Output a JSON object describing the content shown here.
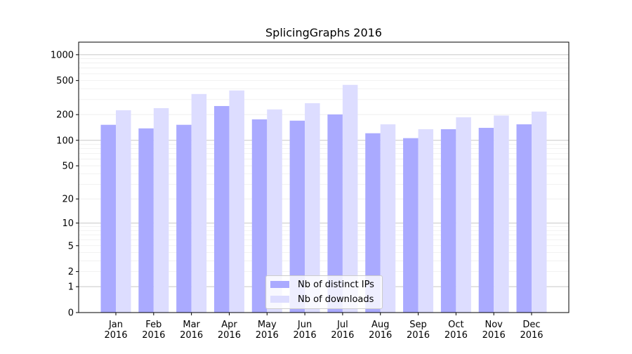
{
  "chart_data": {
    "type": "bar",
    "title": "SplicingGraphs 2016",
    "xlabel": "",
    "ylabel": "",
    "yscale": "log(1+y)",
    "ylim": [
      0,
      1400
    ],
    "yticks": [
      0,
      1,
      2,
      5,
      10,
      20,
      50,
      100,
      200,
      500,
      1000
    ],
    "grid": true,
    "legend_position": "bottom-center",
    "categories": [
      "Jan\n2016",
      "Feb\n2016",
      "Mar\n2016",
      "Apr\n2016",
      "May\n2016",
      "Jun\n2016",
      "Jul\n2016",
      "Aug\n2016",
      "Sep\n2016",
      "Oct\n2016",
      "Nov\n2016",
      "Dec\n2016"
    ],
    "series": [
      {
        "name": "Nb of distinct IPs",
        "color": "#aaaaff",
        "values": [
          152,
          138,
          152,
          252,
          176,
          170,
          201,
          121,
          106,
          135,
          140,
          154
        ]
      },
      {
        "name": "Nb of downloads",
        "color": "#ddddff",
        "values": [
          225,
          238,
          348,
          383,
          230,
          272,
          445,
          154,
          135,
          186,
          195,
          217
        ]
      }
    ]
  }
}
